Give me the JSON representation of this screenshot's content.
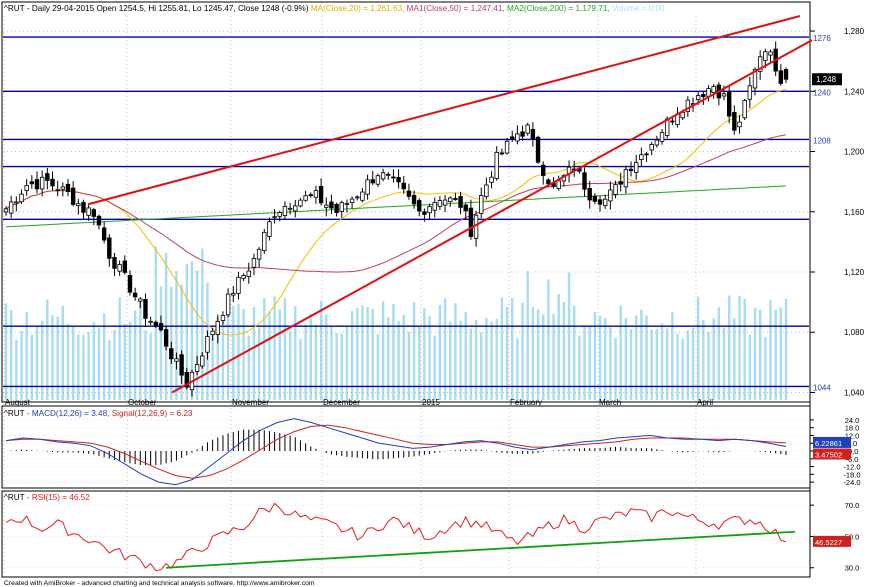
{
  "header": {
    "symbol": "^RUT",
    "info": "- Daily 29-04-2015 Open 1254.5, Hi 1255.81, Lo 1245.47, Close 1248 (-0.9%)",
    "ma": "MA(Close,20) = 1,261.63,",
    "ma1": "MA1(Close,50) = 1,247.41,",
    "ma2": "MA2(Close,200) = 1,179.71,",
    "volume": "Volume = 0.00"
  },
  "macd_header": {
    "symbol": "^RUT",
    "macd": "- MACD(12,26) = 3.48,",
    "signal": "Signal(12,26,9) = 6.23"
  },
  "rsi_header": {
    "symbol": "^RUT",
    "rsi": "- RSI(15) = 46.52"
  },
  "footer": "Created with AmiBroker - advanced charting and technical analysis software. http://www.amibroker.com",
  "colors": {
    "ma20": "#f5c000",
    "ma50": "#c0405a",
    "ma200": "#20a820",
    "volume": "#a8dcf0",
    "hline": "#0000b0",
    "trendline": "#e01010",
    "macd": "#2040c0",
    "signal": "#d02020",
    "rsi": "#e02020",
    "rsi_trend": "#10a010"
  },
  "chart_data": [
    {
      "type": "candlestick",
      "name": "price",
      "x_labels": [
        "August",
        "October",
        "November",
        "December",
        "2015",
        "February",
        "March",
        "April"
      ],
      "y_ticks": [
        "1,280",
        "1,240",
        "1,200",
        "1,160",
        "1,120",
        "1,080",
        "1,040"
      ],
      "ylim": [
        1035,
        1290
      ],
      "horizontal_levels": [
        {
          "value": 1276,
          "label": "1276"
        },
        {
          "value": 1240,
          "label": "1240"
        },
        {
          "value": 1208,
          "label": "1208"
        },
        {
          "value": 1190,
          "label": ""
        },
        {
          "value": 1155,
          "label": ""
        },
        {
          "value": 1084,
          "label": ""
        },
        {
          "value": 1044,
          "label": "1044"
        }
      ],
      "last_price_label": "1,248",
      "moving_averages": [
        "MA(Close,20)",
        "MA1(Close,50)",
        "MA2(Close,200)"
      ],
      "trendlines": [
        {
          "from": [
            1164,
            1165
          ],
          "to": [
            1290,
            1290
          ]
        },
        {
          "from": [
            1040,
            1040
          ],
          "to": [
            1274,
            1274
          ]
        }
      ]
    },
    {
      "type": "line",
      "name": "MACD(12,26)",
      "y_ticks": [
        "24.0",
        "18.0",
        "12.0",
        "6.0",
        "-0.0",
        "-6.0",
        "-12.0",
        "-18.0",
        "-24.0"
      ],
      "ylim": [
        -27,
        27
      ],
      "value_labels": {
        "macd": "3.47502",
        "signal": "6.22861"
      },
      "series": [
        {
          "name": "MACD(12,26)",
          "values": [
            8,
            10,
            9,
            7,
            6,
            4,
            -2,
            -10,
            -18,
            -24,
            -26,
            -22,
            -12,
            -2,
            8,
            16,
            22,
            25,
            22,
            18,
            14,
            10,
            6,
            4,
            2,
            3,
            5,
            7,
            8,
            6,
            3,
            1,
            3,
            5,
            7,
            8,
            10,
            11,
            12,
            10,
            9,
            9,
            8,
            9,
            8,
            6,
            3.48
          ]
        },
        {
          "name": "Signal(12,26,9)",
          "values": [
            8,
            9,
            9,
            8,
            7,
            6,
            3,
            -2,
            -8,
            -14,
            -19,
            -21,
            -19,
            -14,
            -7,
            1,
            9,
            15,
            19,
            20,
            18,
            15,
            12,
            9,
            6,
            5,
            5,
            6,
            7,
            7,
            5,
            3,
            3,
            4,
            5,
            6,
            7,
            9,
            10,
            10,
            10,
            9,
            9,
            9,
            8,
            7,
            6.23
          ]
        }
      ]
    },
    {
      "type": "line",
      "name": "RSI(15)",
      "y_ticks": [
        "70.0",
        "50.0",
        "30.0"
      ],
      "ylim": [
        26,
        72
      ],
      "value_label": "46.5227",
      "series": [
        {
          "name": "RSI(15)",
          "values": [
            60,
            62,
            55,
            58,
            52,
            48,
            42,
            38,
            34,
            30,
            33,
            40,
            46,
            52,
            56,
            66,
            70,
            64,
            60,
            58,
            54,
            50,
            57,
            61,
            54,
            50,
            56,
            60,
            58,
            52,
            46,
            50,
            57,
            61,
            55,
            60,
            63,
            66,
            62,
            67,
            63,
            60,
            58,
            60,
            61,
            56,
            46.52
          ]
        }
      ],
      "trendline": {
        "from": [
          30,
          30
        ],
        "to": [
          53,
          53
        ]
      }
    }
  ]
}
